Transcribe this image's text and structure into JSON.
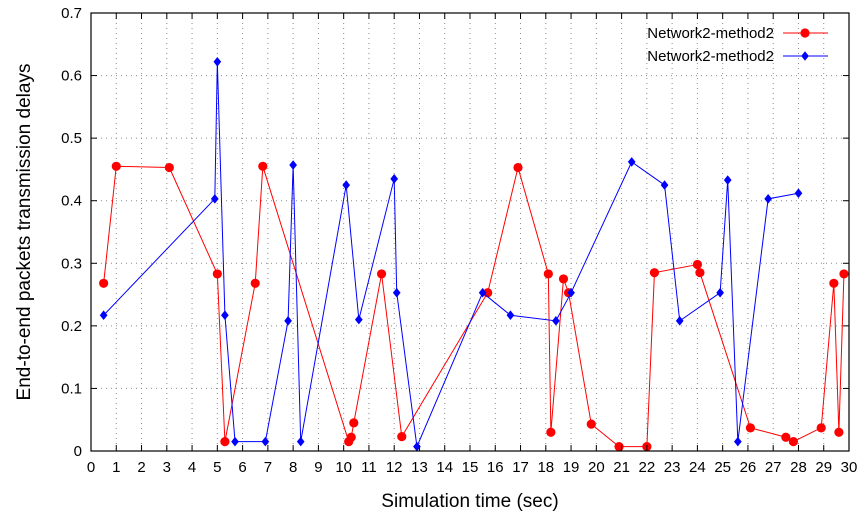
{
  "chart_data": {
    "type": "line",
    "title": "",
    "xlabel": "Simulation time (sec)",
    "ylabel": "End-to-end packets transmission delays",
    "xlim": [
      0,
      30
    ],
    "ylim": [
      0,
      0.7
    ],
    "x_ticks": [
      "0",
      "1",
      "2",
      "3",
      "4",
      "5",
      "6",
      "7",
      "8",
      "9",
      "10",
      "11",
      "12",
      "13",
      "14",
      "15",
      "16",
      "17",
      "18",
      "19",
      "20",
      "21",
      "22",
      "23",
      "24",
      "25",
      "26",
      "27",
      "28",
      "29",
      "30"
    ],
    "y_ticks": [
      "0",
      "0.1",
      "0.2",
      "0.3",
      "0.4",
      "0.5",
      "0.6",
      "0.7"
    ],
    "grid": true,
    "legend_position": "top-right",
    "series": [
      {
        "name": "Network2-method2",
        "color": "#ff0000",
        "marker": "circle",
        "points": [
          [
            0.5,
            0.268
          ],
          [
            1.0,
            0.455
          ],
          [
            3.1,
            0.453
          ],
          [
            5.0,
            0.283
          ],
          [
            5.3,
            0.015
          ],
          [
            6.5,
            0.268
          ],
          [
            6.8,
            0.455
          ],
          [
            10.2,
            0.015
          ],
          [
            10.3,
            0.022
          ],
          [
            10.4,
            0.045
          ],
          [
            11.5,
            0.283
          ],
          [
            12.3,
            0.023
          ],
          [
            15.7,
            0.253
          ],
          [
            16.9,
            0.453
          ],
          [
            18.1,
            0.283
          ],
          [
            18.2,
            0.03
          ],
          [
            18.7,
            0.275
          ],
          [
            18.9,
            0.253
          ],
          [
            19.8,
            0.043
          ],
          [
            20.9,
            0.007
          ],
          [
            22.0,
            0.007
          ],
          [
            22.3,
            0.285
          ],
          [
            24.0,
            0.298
          ],
          [
            24.1,
            0.285
          ],
          [
            26.1,
            0.037
          ],
          [
            27.5,
            0.022
          ],
          [
            27.8,
            0.015
          ],
          [
            28.9,
            0.037
          ],
          [
            29.4,
            0.268
          ],
          [
            29.6,
            0.03
          ],
          [
            29.8,
            0.283
          ]
        ]
      },
      {
        "name": "Network2-method2",
        "color": "#0000ff",
        "marker": "diamond",
        "points": [
          [
            0.5,
            0.217
          ],
          [
            4.9,
            0.403
          ],
          [
            5.0,
            0.622
          ],
          [
            5.3,
            0.217
          ],
          [
            5.7,
            0.015
          ],
          [
            6.9,
            0.015
          ],
          [
            7.8,
            0.208
          ],
          [
            8.0,
            0.457
          ],
          [
            8.3,
            0.015
          ],
          [
            10.1,
            0.425
          ],
          [
            10.6,
            0.21
          ],
          [
            12.0,
            0.435
          ],
          [
            12.1,
            0.253
          ],
          [
            12.9,
            0.007
          ],
          [
            15.5,
            0.253
          ],
          [
            16.6,
            0.217
          ],
          [
            18.4,
            0.208
          ],
          [
            19.0,
            0.253
          ],
          [
            21.4,
            0.462
          ],
          [
            22.7,
            0.425
          ],
          [
            23.3,
            0.208
          ],
          [
            24.9,
            0.253
          ],
          [
            25.2,
            0.433
          ],
          [
            25.6,
            0.015
          ],
          [
            26.8,
            0.403
          ],
          [
            28.0,
            0.412
          ]
        ]
      }
    ]
  }
}
